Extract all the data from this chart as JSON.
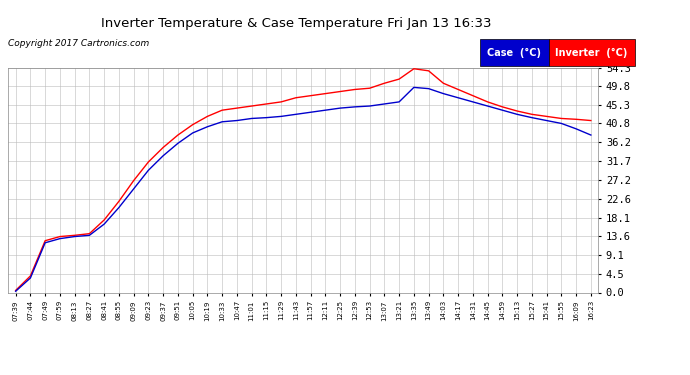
{
  "title": "Inverter Temperature & Case Temperature Fri Jan 13 16:33",
  "copyright": "Copyright 2017 Cartronics.com",
  "legend_case_label": "Case  (°C)",
  "legend_inverter_label": "Inverter  (°C)",
  "case_color": "#0000cc",
  "inverter_color": "#ff0000",
  "background_color": "#ffffff",
  "grid_color": "#bbbbbb",
  "yticks": [
    0.0,
    4.5,
    9.1,
    13.6,
    18.1,
    22.6,
    27.2,
    31.7,
    36.2,
    40.8,
    45.3,
    49.8,
    54.3
  ],
  "ylim": [
    0.0,
    54.3
  ],
  "x_labels": [
    "07:39",
    "07:44",
    "07:49",
    "07:59",
    "08:13",
    "08:27",
    "08:41",
    "08:55",
    "09:09",
    "09:23",
    "09:37",
    "09:51",
    "10:05",
    "10:19",
    "10:33",
    "10:47",
    "11:01",
    "11:15",
    "11:29",
    "11:43",
    "11:57",
    "12:11",
    "12:25",
    "12:39",
    "12:53",
    "13:07",
    "13:21",
    "13:35",
    "13:49",
    "14:03",
    "14:17",
    "14:31",
    "14:45",
    "14:59",
    "15:13",
    "15:27",
    "15:41",
    "15:55",
    "16:09",
    "16:23"
  ],
  "inv_data": [
    0.5,
    4.0,
    12.5,
    13.5,
    13.8,
    14.2,
    17.5,
    22.0,
    27.0,
    31.5,
    35.0,
    38.0,
    40.5,
    42.5,
    44.0,
    44.5,
    45.0,
    45.5,
    46.0,
    47.0,
    47.5,
    48.0,
    48.5,
    49.0,
    49.3,
    50.5,
    51.5,
    54.0,
    53.5,
    50.5,
    49.0,
    47.5,
    46.0,
    44.8,
    43.8,
    43.0,
    42.5,
    42.0,
    41.8,
    41.5
  ],
  "case_data": [
    0.3,
    3.5,
    12.0,
    13.0,
    13.5,
    13.8,
    16.5,
    20.5,
    25.0,
    29.5,
    33.0,
    36.0,
    38.5,
    40.0,
    41.2,
    41.5,
    42.0,
    42.2,
    42.5,
    43.0,
    43.5,
    44.0,
    44.5,
    44.8,
    45.0,
    45.5,
    46.0,
    49.5,
    49.2,
    48.0,
    47.0,
    46.0,
    45.0,
    44.0,
    43.0,
    42.2,
    41.5,
    40.8,
    39.5,
    38.0
  ]
}
